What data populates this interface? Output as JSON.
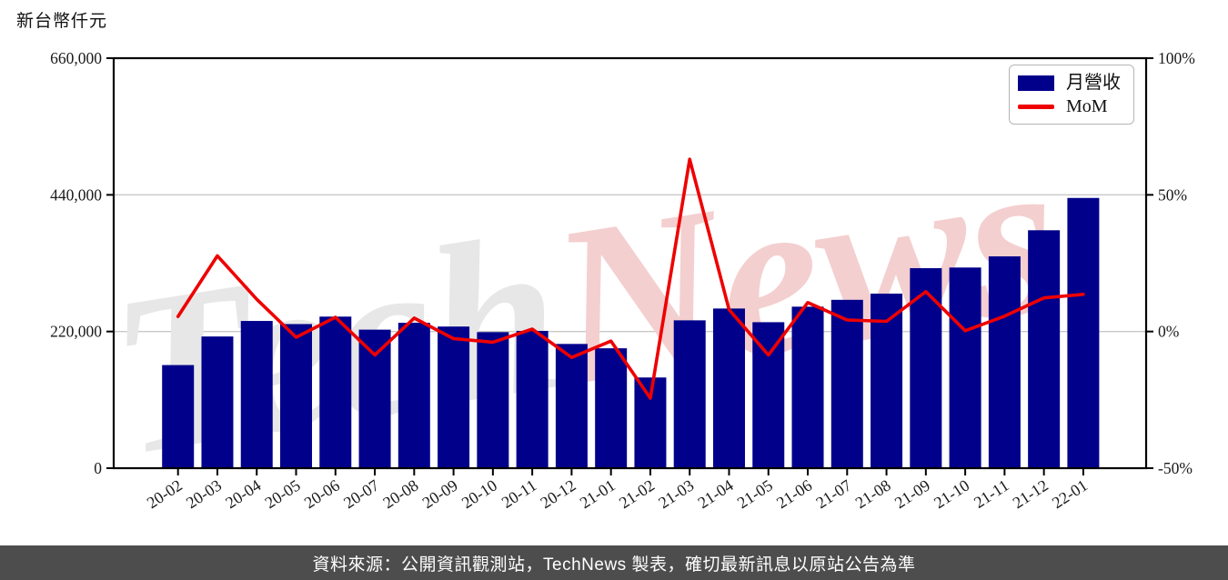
{
  "header": {
    "unit_label": "新台幣仟元"
  },
  "legend": {
    "bar_label": "月營收",
    "line_label": "MoM"
  },
  "watermark": {
    "text_gray": "Tech",
    "text_red": "News"
  },
  "footer": {
    "text": "資料來源：公開資訊觀測站，TechNews 製表，確切最新訊息以原站公告為準"
  },
  "colors": {
    "bar": "#00008B",
    "line": "#EE0000",
    "grid": "#C9C9C9",
    "axis": "#000000",
    "tick_text": "#1a1a1a",
    "footer_bg": "#4d4d4d",
    "watermark_gray": "#e7e7e7",
    "watermark_red": "#f4cfcf"
  },
  "chart_data": {
    "type": "bar",
    "title": "新台幣仟元",
    "categories": [
      "20-02",
      "20-03",
      "20-04",
      "20-05",
      "20-06",
      "20-07",
      "20-08",
      "20-09",
      "20-10",
      "20-11",
      "20-12",
      "21-01",
      "21-02",
      "21-03",
      "21-04",
      "21-05",
      "21-06",
      "21-07",
      "21-08",
      "21-09",
      "21-10",
      "21-11",
      "21-12",
      "22-01"
    ],
    "series": [
      {
        "name": "月營收",
        "type": "bar",
        "axis": "left",
        "unit": "新台幣仟元",
        "values": [
          166000,
          212000,
          237000,
          232000,
          244000,
          223000,
          234000,
          228000,
          219000,
          221000,
          200000,
          193000,
          146000,
          238000,
          257000,
          235000,
          260000,
          271000,
          281000,
          322000,
          323000,
          341000,
          383000,
          435000
        ]
      },
      {
        "name": "MoM",
        "type": "line",
        "axis": "right",
        "unit": "%",
        "values": [
          5.5,
          27.7,
          11.8,
          -2.1,
          5.2,
          -8.6,
          4.9,
          -2.6,
          -3.9,
          0.9,
          -9.5,
          -3.5,
          -24.4,
          63.0,
          8.0,
          -8.6,
          10.6,
          4.2,
          3.7,
          14.6,
          0.3,
          5.6,
          12.3,
          13.6
        ]
      }
    ],
    "left_axis": {
      "tick_values": [
        0,
        220000,
        440000,
        660000
      ],
      "tick_labels": [
        "0",
        "220,000",
        "440,000",
        "660,000"
      ],
      "range": [
        0,
        660000
      ]
    },
    "right_axis": {
      "tick_values": [
        -50,
        0,
        50,
        100
      ],
      "tick_labels": [
        "-50%",
        "0%",
        "50%",
        "100%"
      ],
      "range": [
        -50,
        100
      ]
    },
    "grid": true,
    "legend_position": "upper right"
  }
}
